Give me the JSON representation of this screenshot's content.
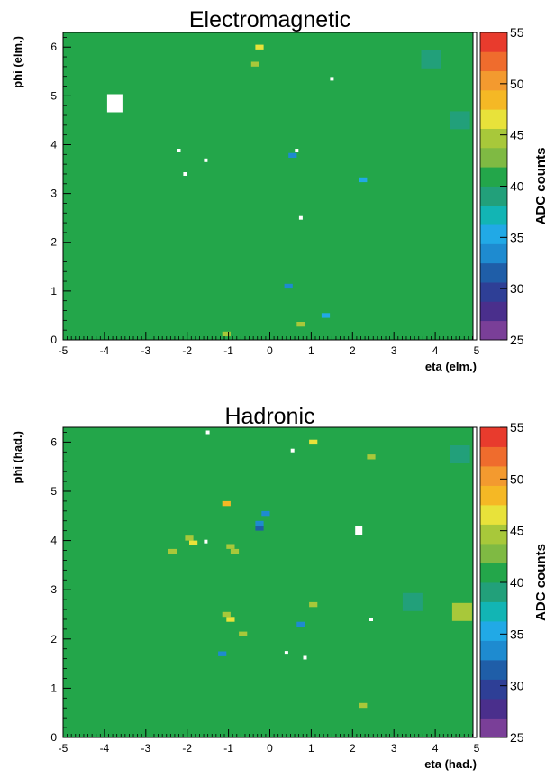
{
  "colors": {
    "background": "#ffffff",
    "baseline_cell": "#23a64a",
    "palette": [
      "#7a3f98",
      "#4a2f8c",
      "#2e3f96",
      "#1f5ea8",
      "#1e8bd0",
      "#21a9e6",
      "#12b5b4",
      "#22a07a",
      "#23a64a",
      "#7fba43",
      "#a8c83a",
      "#e8e23a",
      "#f5b825",
      "#f39a2f",
      "#ef6c2d",
      "#e83b2d"
    ]
  },
  "chart_data": [
    {
      "type": "heatmap",
      "title": "Electromagnetic",
      "xlabel": "eta (elm.)",
      "ylabel": "phi (elm.)",
      "zlabel": "ADC counts",
      "xlim": [
        -5,
        5
      ],
      "ylim": [
        0,
        6.3
      ],
      "zlim": [
        25,
        55
      ],
      "x_ticks": [
        "-5",
        "-4",
        "-3",
        "-2",
        "-1",
        "0",
        "1",
        "2",
        "3",
        "4",
        "5"
      ],
      "y_ticks": [
        "0",
        "1",
        "2",
        "3",
        "4",
        "5",
        "6"
      ],
      "z_ticks": [
        "25",
        "30",
        "35",
        "40",
        "45",
        "50",
        "55"
      ],
      "baseline_value": 41,
      "cells": [
        {
          "eta": -3.75,
          "phi": 4.85,
          "value": null
        },
        {
          "eta": -2.2,
          "phi": 3.88,
          "value": null
        },
        {
          "eta": -2.05,
          "phi": 3.4,
          "value": null
        },
        {
          "eta": -1.55,
          "phi": 3.68,
          "value": null
        },
        {
          "eta": 0.65,
          "phi": 3.88,
          "value": null
        },
        {
          "eta": 0.75,
          "phi": 2.5,
          "value": null
        },
        {
          "eta": 1.5,
          "phi": 5.35,
          "value": null
        },
        {
          "eta": -0.25,
          "phi": 6.0,
          "value": 46
        },
        {
          "eta": -0.35,
          "phi": 5.65,
          "value": 45
        },
        {
          "eta": 0.55,
          "phi": 3.78,
          "value": 33
        },
        {
          "eta": 0.45,
          "phi": 1.1,
          "value": 34
        },
        {
          "eta": 1.35,
          "phi": 0.5,
          "value": 35
        },
        {
          "eta": 2.25,
          "phi": 3.28,
          "value": 35
        },
        {
          "eta": 0.75,
          "phi": 0.32,
          "value": 45
        },
        {
          "eta": -1.05,
          "phi": 0.12,
          "value": 45
        },
        {
          "eta": 3.9,
          "phi": 5.75,
          "value": 39
        },
        {
          "eta": 4.6,
          "phi": 4.5,
          "value": 39
        }
      ]
    },
    {
      "type": "heatmap",
      "title": "Hadronic",
      "xlabel": "eta (had.)",
      "ylabel": "phi (had.)",
      "zlabel": "ADC counts",
      "xlim": [
        -5,
        5
      ],
      "ylim": [
        0,
        6.3
      ],
      "zlim": [
        25,
        55
      ],
      "x_ticks": [
        "-5",
        "-4",
        "-3",
        "-2",
        "-1",
        "0",
        "1",
        "2",
        "3",
        "4",
        "5"
      ],
      "y_ticks": [
        "0",
        "1",
        "2",
        "3",
        "4",
        "5",
        "6"
      ],
      "z_ticks": [
        "25",
        "30",
        "35",
        "40",
        "45",
        "50",
        "55"
      ],
      "baseline_value": 41,
      "cells": [
        {
          "eta": -1.5,
          "phi": 6.2,
          "value": null
        },
        {
          "eta": 0.55,
          "phi": 5.83,
          "value": null
        },
        {
          "eta": 2.15,
          "phi": 4.2,
          "value": null
        },
        {
          "eta": -1.55,
          "phi": 3.98,
          "value": null
        },
        {
          "eta": 0.4,
          "phi": 1.72,
          "value": null
        },
        {
          "eta": 0.85,
          "phi": 1.62,
          "value": null
        },
        {
          "eta": 2.45,
          "phi": 2.4,
          "value": null
        },
        {
          "eta": -1.05,
          "phi": 4.75,
          "value": 48
        },
        {
          "eta": -1.95,
          "phi": 4.05,
          "value": 45
        },
        {
          "eta": -1.85,
          "phi": 3.95,
          "value": 46
        },
        {
          "eta": -2.35,
          "phi": 3.78,
          "value": 45
        },
        {
          "eta": -0.95,
          "phi": 3.88,
          "value": 45
        },
        {
          "eta": -0.85,
          "phi": 3.78,
          "value": 44
        },
        {
          "eta": -0.25,
          "phi": 4.35,
          "value": 33
        },
        {
          "eta": -0.1,
          "phi": 4.55,
          "value": 34
        },
        {
          "eta": -0.25,
          "phi": 4.25,
          "value": 32
        },
        {
          "eta": 1.05,
          "phi": 6.0,
          "value": 46
        },
        {
          "eta": 2.45,
          "phi": 5.7,
          "value": 45
        },
        {
          "eta": -1.05,
          "phi": 2.5,
          "value": 45
        },
        {
          "eta": -0.95,
          "phi": 2.4,
          "value": 46
        },
        {
          "eta": -0.65,
          "phi": 2.1,
          "value": 45
        },
        {
          "eta": 1.05,
          "phi": 2.7,
          "value": 45
        },
        {
          "eta": 0.75,
          "phi": 2.3,
          "value": 34
        },
        {
          "eta": -1.15,
          "phi": 1.7,
          "value": 33
        },
        {
          "eta": 2.25,
          "phi": 0.65,
          "value": 45
        },
        {
          "eta": 3.45,
          "phi": 2.75,
          "value": 39
        },
        {
          "eta": 4.65,
          "phi": 2.55,
          "value": 45
        },
        {
          "eta": 4.6,
          "phi": 5.75,
          "value": 39
        }
      ]
    }
  ]
}
